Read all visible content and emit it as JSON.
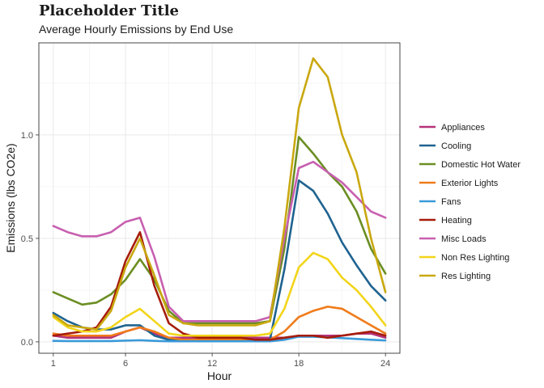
{
  "chart_data": {
    "type": "line",
    "title": "Placeholder Title",
    "subtitle": "Average Hourly Emissions by End Use",
    "xlabel": "Hour",
    "ylabel": "Emissions (lbs CO2e)",
    "xlim": [
      1,
      24
    ],
    "ylim": [
      0,
      1.37
    ],
    "x_ticks": [
      1,
      6,
      12,
      18,
      24
    ],
    "y_ticks": [
      0.0,
      0.5,
      1.0
    ],
    "y_tick_labels": [
      "0.0",
      "0.5",
      "1.0"
    ],
    "grid": true,
    "legend_position": "right",
    "x": [
      1,
      2,
      3,
      4,
      5,
      6,
      7,
      8,
      9,
      10,
      11,
      12,
      13,
      14,
      15,
      16,
      17,
      18,
      19,
      20,
      21,
      22,
      23,
      24
    ],
    "series": [
      {
        "name": "Appliances",
        "color": "#b5327a",
        "values": [
          0.03,
          0.02,
          0.02,
          0.02,
          0.02,
          0.05,
          0.07,
          0.04,
          0.02,
          0.02,
          0.02,
          0.02,
          0.02,
          0.02,
          0.02,
          0.02,
          0.02,
          0.03,
          0.03,
          0.03,
          0.03,
          0.04,
          0.04,
          0.02
        ]
      },
      {
        "name": "Cooling",
        "color": "#1f6390",
        "values": [
          0.14,
          0.1,
          0.07,
          0.06,
          0.06,
          0.08,
          0.08,
          0.03,
          0.01,
          0.01,
          0.01,
          0.01,
          0.01,
          0.01,
          0.01,
          0.01,
          0.35,
          0.78,
          0.73,
          0.62,
          0.48,
          0.37,
          0.27,
          0.2
        ]
      },
      {
        "name": "Domestic Hot Water",
        "color": "#6b8e23",
        "values": [
          0.24,
          0.21,
          0.18,
          0.19,
          0.23,
          0.3,
          0.4,
          0.3,
          0.15,
          0.09,
          0.09,
          0.09,
          0.09,
          0.09,
          0.09,
          0.1,
          0.45,
          0.99,
          0.91,
          0.82,
          0.75,
          0.63,
          0.45,
          0.33
        ]
      },
      {
        "name": "Exterior Lights",
        "color": "#f07b1a",
        "values": [
          0.04,
          0.03,
          0.03,
          0.03,
          0.03,
          0.05,
          0.07,
          0.05,
          0.02,
          0.01,
          0.01,
          0.01,
          0.01,
          0.01,
          0.01,
          0.01,
          0.05,
          0.12,
          0.15,
          0.17,
          0.16,
          0.12,
          0.08,
          0.04
        ]
      },
      {
        "name": "Fans",
        "color": "#3a9ad9",
        "values": [
          0.005,
          0.004,
          0.004,
          0.004,
          0.004,
          0.006,
          0.008,
          0.005,
          0.003,
          0.003,
          0.003,
          0.003,
          0.003,
          0.003,
          0.003,
          0.003,
          0.01,
          0.025,
          0.025,
          0.022,
          0.018,
          0.014,
          0.01,
          0.007
        ]
      },
      {
        "name": "Heating",
        "color": "#a61c0a",
        "values": [
          0.03,
          0.04,
          0.05,
          0.07,
          0.17,
          0.39,
          0.53,
          0.27,
          0.09,
          0.04,
          0.02,
          0.02,
          0.02,
          0.02,
          0.01,
          0.01,
          0.02,
          0.03,
          0.03,
          0.02,
          0.03,
          0.04,
          0.05,
          0.03
        ]
      },
      {
        "name": "Misc Loads",
        "color": "#c85fb0",
        "values": [
          0.56,
          0.53,
          0.51,
          0.51,
          0.53,
          0.58,
          0.6,
          0.41,
          0.17,
          0.1,
          0.1,
          0.1,
          0.1,
          0.1,
          0.1,
          0.12,
          0.5,
          0.84,
          0.87,
          0.82,
          0.77,
          0.7,
          0.63,
          0.6
        ]
      },
      {
        "name": "Non Res Lighting",
        "color": "#f2d51a",
        "values": [
          0.12,
          0.07,
          0.05,
          0.05,
          0.07,
          0.12,
          0.16,
          0.1,
          0.04,
          0.03,
          0.03,
          0.03,
          0.03,
          0.03,
          0.03,
          0.04,
          0.16,
          0.36,
          0.43,
          0.4,
          0.31,
          0.25,
          0.17,
          0.08
        ]
      },
      {
        "name": "Res Lighting",
        "color": "#c9a80f",
        "values": [
          0.13,
          0.08,
          0.07,
          0.06,
          0.15,
          0.36,
          0.5,
          0.32,
          0.13,
          0.09,
          0.08,
          0.08,
          0.08,
          0.08,
          0.08,
          0.1,
          0.55,
          1.13,
          1.37,
          1.28,
          1.0,
          0.82,
          0.5,
          0.24
        ]
      }
    ]
  }
}
